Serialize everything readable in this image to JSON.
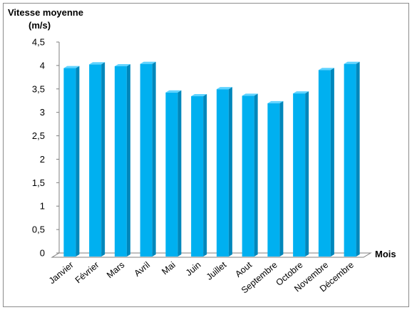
{
  "chart_data": {
    "type": "bar",
    "title": "",
    "ylabel_line1": "Vitesse moyenne",
    "ylabel_line2": "(m/s)",
    "xlabel": "Mois",
    "ylim": [
      0,
      4.5
    ],
    "y_tick_labels": [
      "0",
      "0,5",
      "1",
      "1,5",
      "2",
      "2,5",
      "3",
      "3,5",
      "4",
      "4,5"
    ],
    "y_tick_values": [
      0,
      0.5,
      1,
      1.5,
      2,
      2.5,
      3,
      3.5,
      4,
      4.5
    ],
    "categories": [
      "Janvier",
      "Février",
      "Mars",
      "Avril",
      "Mai",
      "Juin",
      "Juillet",
      "Aout",
      "Septembre",
      "Octobre",
      "Novembre",
      "Décembre"
    ],
    "values": [
      4.02,
      4.1,
      4.06,
      4.11,
      3.5,
      3.42,
      3.57,
      3.43,
      3.27,
      3.48,
      3.98,
      4.11
    ],
    "grid": false,
    "legend": "none",
    "colors": {
      "bar_front": "#00b0f0",
      "bar_side": "#0087bb",
      "bar_top": "#5fd3ff",
      "floor": "#ffffff",
      "axis": "#7f7f7f"
    }
  }
}
